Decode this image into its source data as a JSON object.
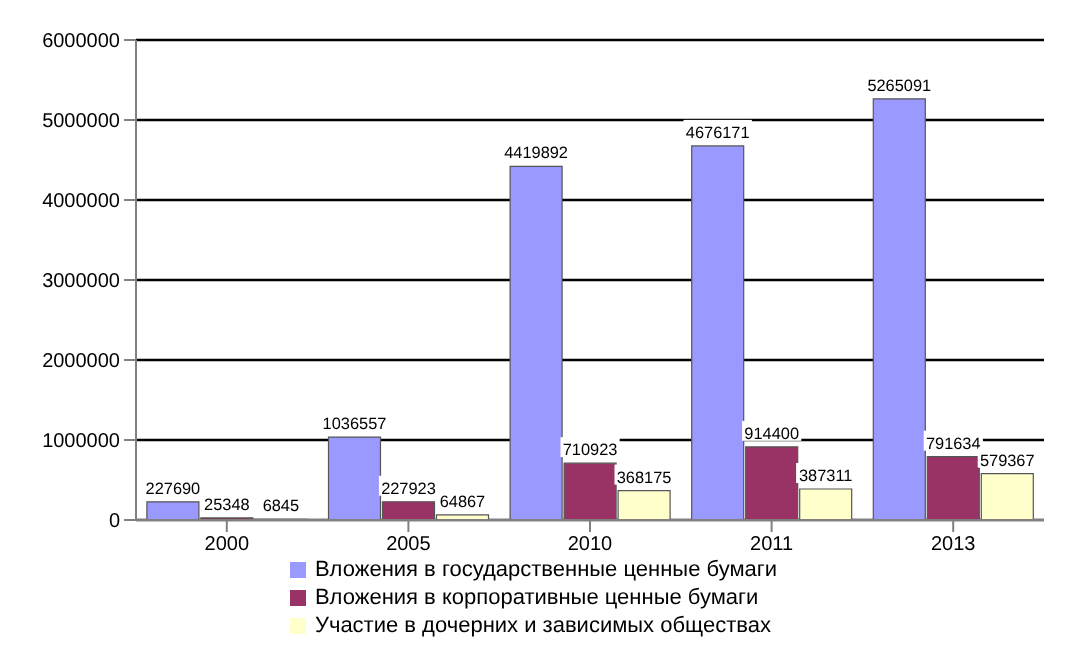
{
  "chart_data": {
    "type": "bar",
    "categories": [
      "2000",
      "2005",
      "2010",
      "2011",
      "2013"
    ],
    "series": [
      {
        "name": "Вложения в государственные ценные бумаги",
        "color": "#9999ff",
        "values": [
          227690,
          1036557,
          4419892,
          4676171,
          5265091
        ]
      },
      {
        "name": "Вложения в корпоративные ценные бумаги",
        "color": "#993366",
        "values": [
          25348,
          227923,
          710923,
          914400,
          791634
        ]
      },
      {
        "name": "Участие в дочерних и зависимых обществах",
        "color": "#ffffcc",
        "values": [
          6845,
          64867,
          368175,
          387311,
          579367
        ]
      }
    ],
    "ylim": [
      0,
      6000000
    ],
    "yticks": [
      0,
      1000000,
      2000000,
      3000000,
      4000000,
      5000000,
      6000000
    ],
    "grid": "y",
    "legend": "bottom",
    "data_labels": true
  }
}
